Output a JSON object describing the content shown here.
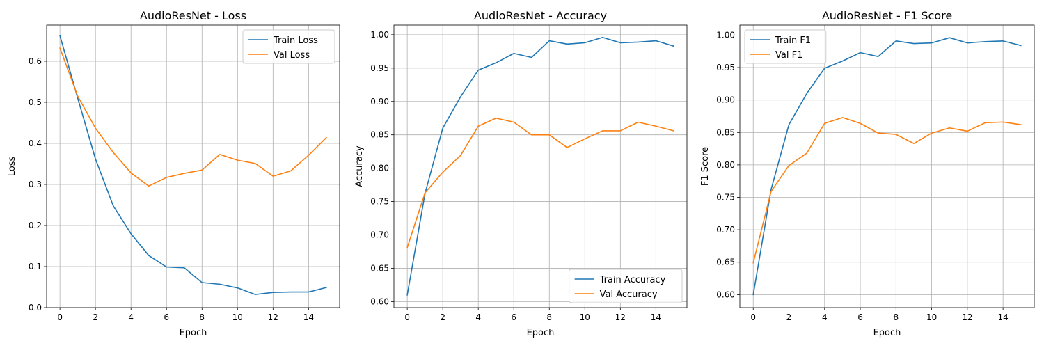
{
  "chart_data": [
    {
      "type": "line",
      "title": "AudioResNet - Loss",
      "xlabel": "Epoch",
      "ylabel": "Loss",
      "x": [
        0,
        1,
        2,
        3,
        4,
        5,
        6,
        7,
        8,
        9,
        10,
        11,
        12,
        13,
        14,
        15
      ],
      "xticks": [
        0,
        2,
        4,
        6,
        8,
        10,
        12,
        14
      ],
      "xlim": [
        -0.75,
        15.75
      ],
      "ylim": [
        0.0,
        0.688
      ],
      "yticks": [
        0.0,
        0.1,
        0.2,
        0.3,
        0.4,
        0.5,
        0.6
      ],
      "ytick_decimals": 1,
      "grid": true,
      "legend_position": "upper right",
      "series": [
        {
          "name": "Train Loss",
          "color": "#1f77b4",
          "values": [
            0.662,
            0.51,
            0.362,
            0.248,
            0.18,
            0.127,
            0.099,
            0.097,
            0.061,
            0.057,
            0.048,
            0.032,
            0.037,
            0.038,
            0.038,
            0.049
          ]
        },
        {
          "name": "Val Loss",
          "color": "#ff7f0e",
          "values": [
            0.632,
            0.515,
            0.437,
            0.378,
            0.328,
            0.296,
            0.317,
            0.327,
            0.335,
            0.373,
            0.359,
            0.351,
            0.32,
            0.333,
            0.371,
            0.414
          ]
        }
      ]
    },
    {
      "type": "line",
      "title": "AudioResNet - Accuracy",
      "xlabel": "Epoch",
      "ylabel": "Accuracy",
      "x": [
        0,
        1,
        2,
        3,
        4,
        5,
        6,
        7,
        8,
        9,
        10,
        11,
        12,
        13,
        14,
        15
      ],
      "xticks": [
        0,
        2,
        4,
        6,
        8,
        10,
        12,
        14
      ],
      "xlim": [
        -0.75,
        15.75
      ],
      "ylim": [
        0.591,
        1.0145
      ],
      "yticks": [
        0.6,
        0.65,
        0.7,
        0.75,
        0.8,
        0.85,
        0.9,
        0.95,
        1.0
      ],
      "ytick_decimals": 2,
      "grid": true,
      "legend_position": "lower right",
      "series": [
        {
          "name": "Train Accuracy",
          "color": "#1f77b4",
          "values": [
            0.61,
            0.762,
            0.86,
            0.907,
            0.947,
            0.958,
            0.972,
            0.966,
            0.991,
            0.986,
            0.988,
            0.996,
            0.988,
            0.989,
            0.991,
            0.983
          ]
        },
        {
          "name": "Val Accuracy",
          "color": "#ff7f0e",
          "values": [
            0.681,
            0.763,
            0.794,
            0.819,
            0.863,
            0.875,
            0.869,
            0.85,
            0.85,
            0.831,
            0.844,
            0.856,
            0.856,
            0.869,
            0.863,
            0.856
          ]
        }
      ]
    },
    {
      "type": "line",
      "title": "AudioResNet - F1 Score",
      "xlabel": "Epoch",
      "ylabel": "F1 Score",
      "x": [
        0,
        1,
        2,
        3,
        4,
        5,
        6,
        7,
        8,
        9,
        10,
        11,
        12,
        13,
        14,
        15
      ],
      "xticks": [
        0,
        2,
        4,
        6,
        8,
        10,
        12,
        14
      ],
      "xlim": [
        -0.75,
        15.75
      ],
      "ylim": [
        0.58,
        1.0155
      ],
      "yticks": [
        0.6,
        0.65,
        0.7,
        0.75,
        0.8,
        0.85,
        0.9,
        0.95,
        1.0
      ],
      "ytick_decimals": 2,
      "grid": true,
      "legend_position": "upper left",
      "series": [
        {
          "name": "Train F1",
          "color": "#1f77b4",
          "values": [
            0.6,
            0.762,
            0.862,
            0.91,
            0.949,
            0.96,
            0.973,
            0.967,
            0.991,
            0.987,
            0.988,
            0.996,
            0.988,
            0.99,
            0.991,
            0.984
          ]
        },
        {
          "name": "Val F1",
          "color": "#ff7f0e",
          "values": [
            0.649,
            0.759,
            0.799,
            0.818,
            0.864,
            0.873,
            0.864,
            0.849,
            0.847,
            0.833,
            0.849,
            0.857,
            0.852,
            0.865,
            0.866,
            0.862
          ]
        }
      ]
    }
  ]
}
